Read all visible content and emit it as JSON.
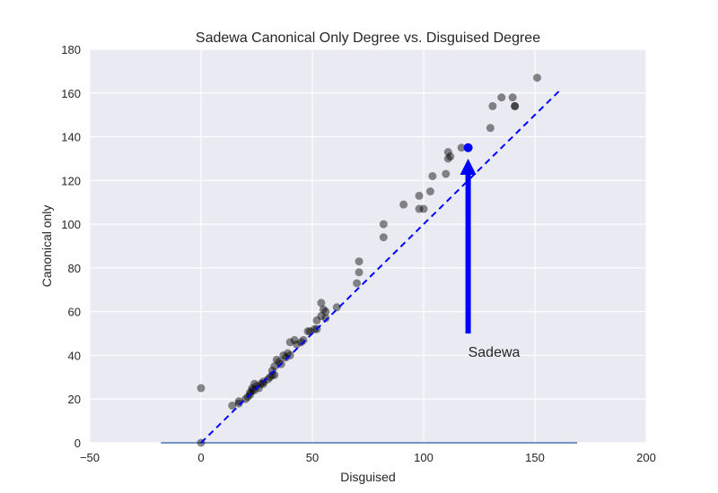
{
  "chart_data": {
    "type": "scatter",
    "title": "Sadewa Canonical Only Degree vs. Disguised Degree",
    "xlabel": "Disguised",
    "ylabel": "Canonical only",
    "xlim": [
      -50,
      200
    ],
    "ylim": [
      0,
      180
    ],
    "xticks": [
      -50,
      0,
      50,
      100,
      150,
      200
    ],
    "yticks": [
      0,
      20,
      40,
      60,
      80,
      100,
      120,
      140,
      160,
      180
    ],
    "grid": true,
    "style": "seaborn-darkgrid",
    "colors": {
      "background": "#EAEAF2",
      "grid": "#FFFFFF",
      "points": "#000000",
      "highlight": "#0000FF",
      "reference_line": "#0000FF",
      "baseline": "#4C72B0"
    },
    "points": [
      {
        "x": 0,
        "y": 0
      },
      {
        "x": 0,
        "y": 25
      },
      {
        "x": 14,
        "y": 17
      },
      {
        "x": 17,
        "y": 18
      },
      {
        "x": 17,
        "y": 19
      },
      {
        "x": 20,
        "y": 20
      },
      {
        "x": 21,
        "y": 21
      },
      {
        "x": 22,
        "y": 22
      },
      {
        "x": 22,
        "y": 23
      },
      {
        "x": 23,
        "y": 24
      },
      {
        "x": 23,
        "y": 25
      },
      {
        "x": 24,
        "y": 24
      },
      {
        "x": 24,
        "y": 27
      },
      {
        "x": 25,
        "y": 26
      },
      {
        "x": 26,
        "y": 25
      },
      {
        "x": 27,
        "y": 27
      },
      {
        "x": 28,
        "y": 27
      },
      {
        "x": 28,
        "y": 28
      },
      {
        "x": 30,
        "y": 29
      },
      {
        "x": 31,
        "y": 30
      },
      {
        "x": 32,
        "y": 31
      },
      {
        "x": 32,
        "y": 33
      },
      {
        "x": 33,
        "y": 31
      },
      {
        "x": 33,
        "y": 35
      },
      {
        "x": 34,
        "y": 38
      },
      {
        "x": 35,
        "y": 37
      },
      {
        "x": 36,
        "y": 36
      },
      {
        "x": 37,
        "y": 40
      },
      {
        "x": 38,
        "y": 39
      },
      {
        "x": 39,
        "y": 41
      },
      {
        "x": 40,
        "y": 40
      },
      {
        "x": 40,
        "y": 46
      },
      {
        "x": 42,
        "y": 47
      },
      {
        "x": 43,
        "y": 45
      },
      {
        "x": 45,
        "y": 46
      },
      {
        "x": 46,
        "y": 47
      },
      {
        "x": 48,
        "y": 51
      },
      {
        "x": 49,
        "y": 51
      },
      {
        "x": 51,
        "y": 52
      },
      {
        "x": 52,
        "y": 56
      },
      {
        "x": 52,
        "y": 52
      },
      {
        "x": 54,
        "y": 58
      },
      {
        "x": 54,
        "y": 64
      },
      {
        "x": 55,
        "y": 61
      },
      {
        "x": 56,
        "y": 57
      },
      {
        "x": 56,
        "y": 60
      },
      {
        "x": 61,
        "y": 62
      },
      {
        "x": 70,
        "y": 73
      },
      {
        "x": 71,
        "y": 78
      },
      {
        "x": 71,
        "y": 83
      },
      {
        "x": 82,
        "y": 94
      },
      {
        "x": 82,
        "y": 100
      },
      {
        "x": 91,
        "y": 109
      },
      {
        "x": 98,
        "y": 113
      },
      {
        "x": 98,
        "y": 107
      },
      {
        "x": 100,
        "y": 107
      },
      {
        "x": 103,
        "y": 115
      },
      {
        "x": 104,
        "y": 122
      },
      {
        "x": 110,
        "y": 123
      },
      {
        "x": 111,
        "y": 130
      },
      {
        "x": 111,
        "y": 133
      },
      {
        "x": 112,
        "y": 131
      },
      {
        "x": 117,
        "y": 135
      },
      {
        "x": 130,
        "y": 144
      },
      {
        "x": 131,
        "y": 154
      },
      {
        "x": 135,
        "y": 158
      },
      {
        "x": 140,
        "y": 158
      },
      {
        "x": 141,
        "y": 154
      },
      {
        "x": 141,
        "y": 154
      },
      {
        "x": 151,
        "y": 167
      }
    ],
    "highlight": {
      "x": 120,
      "y": 135
    },
    "reference_line": {
      "x": [
        0,
        161
      ],
      "y": [
        0,
        161
      ],
      "style": "dashed"
    },
    "baseline": {
      "x": [
        -18,
        169
      ],
      "y": 0
    },
    "annotation": {
      "text": "Sadewa",
      "arrow_tail": {
        "x": 120,
        "y": 50
      },
      "arrow_head": {
        "x": 120,
        "y": 130
      }
    }
  }
}
